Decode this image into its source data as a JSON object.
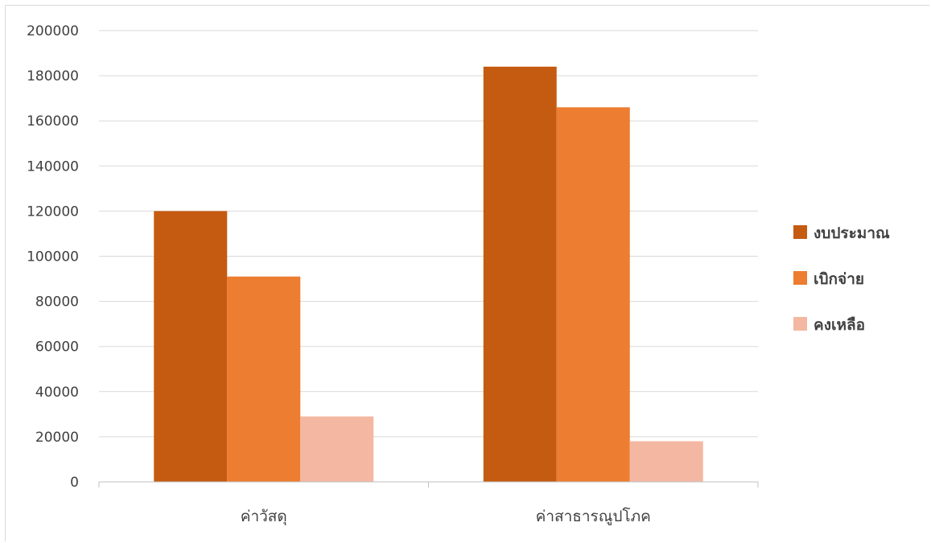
{
  "chart_data": {
    "type": "bar",
    "categories": [
      "ค่าวัสดุ",
      "ค่าสาธารณูปโภค"
    ],
    "series": [
      {
        "name": "งบประมาณ",
        "color": "#c55a11",
        "values": [
          120000,
          184000
        ]
      },
      {
        "name": "เบิกจ่าย",
        "color": "#ed7d31",
        "values": [
          91000,
          166000
        ]
      },
      {
        "name": "คงเหลือ",
        "color": "#f4b8a2",
        "values": [
          29000,
          18000
        ]
      }
    ],
    "yticks": [
      "0",
      "20000",
      "40000",
      "60000",
      "80000",
      "100000",
      "120000",
      "140000",
      "160000",
      "180000",
      "200000"
    ],
    "ylim": [
      0,
      200000
    ],
    "grid": true,
    "legend_position": "right"
  }
}
